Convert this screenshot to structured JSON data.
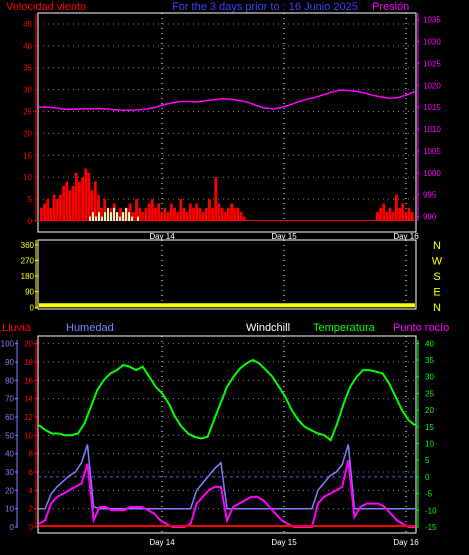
{
  "header": {
    "left_title": "Velocidad viento",
    "center_title": "For the 3 days prior to : 16 Junio 2025",
    "right_title": "Presión"
  },
  "days": [
    "Day 14",
    "Day 15",
    "Day 16"
  ],
  "colors": {
    "wind": "#ff0000",
    "gust": "#ccffcc",
    "pressure": "#ff00ff",
    "direction": "#ffff00",
    "rain": "#ff0000",
    "humidity": "#8080ff",
    "windchill": "#ffffff",
    "temperature": "#00ff00",
    "dewpoint": "#ff00ff",
    "grid": "#ffffff",
    "axis": "#ff0000",
    "dir_axis": "#ffff00",
    "humidity_axis": "#8080ff",
    "temp_axis": "#00ff00"
  },
  "chart_data": [
    {
      "type": "line",
      "name": "top",
      "x_ticks": [
        "Day 14",
        "Day 15",
        "Day 16"
      ],
      "left_axis": {
        "label": "Velocidad viento",
        "ticks": [
          0,
          5,
          10,
          15,
          20,
          25,
          30,
          35,
          40,
          45
        ],
        "range": [
          0,
          47.5
        ]
      },
      "right_axis": {
        "label": "Presión",
        "ticks": [
          990,
          995,
          1000,
          1005,
          1010,
          1015,
          1020,
          1025,
          1030,
          1035
        ],
        "range": [
          989,
          1036.5
        ]
      },
      "pressure": [
        1015,
        1015,
        1014.8,
        1014.5,
        1014.5,
        1014.6,
        1014.6,
        1014.7,
        1014.6,
        1014.4,
        1014.3,
        1014.3,
        1014.4,
        1014.6,
        1015,
        1015.6,
        1016,
        1016.3,
        1016.3,
        1016.2,
        1016.5,
        1016.7,
        1016.9,
        1016.8,
        1016.5,
        1016.1,
        1015.4,
        1014.8,
        1014.6,
        1014.9,
        1015.5,
        1016.2,
        1016.8,
        1017.2,
        1017.8,
        1018.4,
        1018.9,
        1018.8,
        1018.6,
        1018.2,
        1017.7,
        1017.3,
        1017,
        1017.2,
        1017.8,
        1018.6
      ],
      "wind": [
        3,
        4,
        5,
        3,
        6,
        5,
        6,
        8,
        9,
        7,
        8,
        11,
        9,
        10,
        12,
        11,
        7,
        9,
        6,
        3,
        5,
        2,
        3,
        4,
        2,
        3,
        2,
        3,
        4,
        2,
        5,
        3,
        2,
        3,
        4,
        5,
        3,
        4,
        2,
        3,
        2,
        4,
        3,
        2,
        5,
        3,
        2,
        4,
        3,
        4,
        3,
        2,
        3,
        5,
        3,
        10,
        4,
        3,
        2,
        3,
        4,
        3,
        3,
        2,
        1,
        0,
        0,
        0,
        0,
        0,
        0,
        0,
        0,
        0,
        0,
        0,
        0,
        0,
        0,
        0,
        0,
        0,
        0,
        0,
        0,
        0,
        0,
        0,
        0,
        0,
        0,
        0,
        0,
        0,
        0,
        0,
        0,
        0,
        0,
        0,
        0,
        0,
        0,
        0,
        0,
        0,
        2,
        3,
        4,
        2,
        3,
        2,
        6,
        3,
        4,
        2,
        3,
        2
      ],
      "gust": [
        0,
        1,
        2,
        1,
        2,
        1,
        2,
        3,
        2,
        3,
        2,
        1,
        2,
        3,
        2,
        1,
        0,
        1
      ]
    },
    {
      "type": "scatter",
      "name": "direction",
      "left_axis": {
        "ticks": [
          0,
          90,
          180,
          270,
          360
        ],
        "range": [
          -10,
          365
        ]
      },
      "compass": [
        "N",
        "W",
        "S",
        "E",
        "N"
      ],
      "values": [
        0
      ]
    },
    {
      "type": "line",
      "name": "bottom",
      "x_ticks": [
        "Day 14",
        "Day 15",
        "Day 16"
      ],
      "legend": [
        "Lluvia",
        "Humedad",
        "Windchill",
        "Temperatura",
        "Punto rocío"
      ],
      "humidity_axis": {
        "ticks": [
          0,
          10,
          20,
          30,
          40,
          50,
          60,
          70,
          80,
          90,
          100
        ],
        "range": [
          0,
          102
        ]
      },
      "rain_axis": {
        "ticks": [
          0,
          2,
          4,
          6,
          8,
          10,
          12,
          14,
          16,
          18,
          20
        ],
        "range": [
          0,
          20.4
        ]
      },
      "temp_axis": {
        "ticks": [
          -15,
          -10,
          -5,
          0,
          5,
          10,
          15,
          20,
          25,
          30,
          35,
          40
        ],
        "range": [
          -15,
          41
        ]
      },
      "temperature": [
        15.5,
        14,
        13,
        13,
        12.5,
        12.5,
        13,
        16,
        21,
        26,
        29,
        31,
        32,
        33.5,
        33,
        32,
        33,
        30,
        27,
        25,
        22,
        18,
        15,
        13,
        12,
        11.5,
        12,
        17,
        22,
        27,
        30,
        32.5,
        34,
        35,
        34,
        32,
        30,
        27,
        24,
        20,
        17,
        15,
        14,
        13,
        12.5,
        11,
        16,
        22,
        27,
        30,
        32,
        32,
        31.5,
        31,
        28,
        24,
        20,
        17,
        15.5
      ],
      "windchill": [
        15.5,
        14,
        13,
        13,
        12.5,
        12.5,
        13,
        16,
        21,
        26,
        29,
        31,
        32,
        33.5,
        33,
        32,
        33,
        30,
        27,
        25,
        22,
        18,
        15,
        13,
        12,
        11.5,
        12,
        17,
        22,
        27,
        30,
        32.5,
        34,
        35,
        34,
        32,
        30,
        27,
        24,
        20,
        17,
        15,
        14,
        13,
        12.5,
        11,
        16,
        22,
        27,
        30,
        32,
        32,
        31.5,
        31,
        28,
        24,
        20,
        17,
        15.5
      ],
      "humidity": [
        10,
        10,
        18,
        22,
        25,
        28,
        30,
        35,
        45,
        11,
        10,
        10,
        10,
        10,
        10,
        10,
        10,
        10,
        10,
        10,
        10,
        10,
        10,
        10,
        10,
        10,
        20,
        24,
        28,
        32,
        35,
        10,
        10,
        10,
        10,
        10,
        10,
        10,
        10,
        10,
        10,
        10,
        10,
        10,
        10,
        10,
        20,
        24,
        28,
        30,
        34,
        45,
        10,
        10,
        10,
        10,
        10,
        10,
        10,
        10,
        10,
        10,
        10
      ],
      "dewpoint": [
        -14,
        -13,
        -8,
        -6,
        -5,
        -4,
        -3,
        -2,
        4,
        -13,
        -9,
        -9,
        -10,
        -10,
        -10,
        -9,
        -9,
        -9,
        -10,
        -11,
        -13,
        -14,
        -15,
        -15,
        -15,
        -14,
        -8,
        -6,
        -4,
        -3,
        -3,
        -13,
        -9,
        -8,
        -7,
        -6,
        -6,
        -7,
        -9,
        -11,
        -13,
        -14,
        -15,
        -15,
        -15,
        -15,
        -8,
        -6,
        -5,
        -4,
        -3,
        5,
        -12,
        -9,
        -8,
        -8,
        -8,
        -9,
        -11,
        -13,
        -14,
        -15,
        -15
      ],
      "rain": [
        0
      ]
    }
  ]
}
